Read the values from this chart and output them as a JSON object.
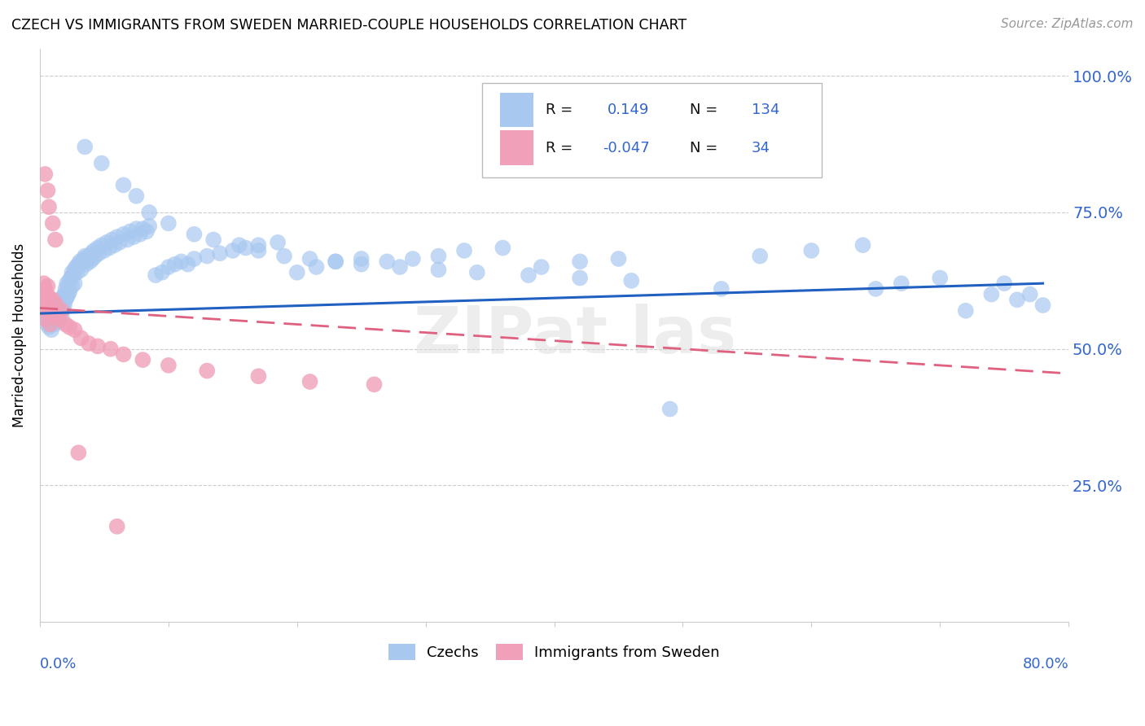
{
  "title": "CZECH VS IMMIGRANTS FROM SWEDEN MARRIED-COUPLE HOUSEHOLDS CORRELATION CHART",
  "source": "Source: ZipAtlas.com",
  "ylabel": "Married-couple Households",
  "y_tick_vals": [
    1.0,
    0.75,
    0.5,
    0.25
  ],
  "y_tick_labels": [
    "100.0%",
    "75.0%",
    "50.0%",
    "25.0%"
  ],
  "x_min": 0.0,
  "x_max": 0.8,
  "y_min": 0.0,
  "y_max": 1.05,
  "blue_color": "#A8C8F0",
  "pink_color": "#F0A0B8",
  "blue_line_color": "#2060C0",
  "pink_line_color": "#E06080",
  "legend_R1": "0.149",
  "legend_N1": "134",
  "legend_R2": "-0.047",
  "legend_N2": "34",
  "czech_x": [
    0.004,
    0.005,
    0.006,
    0.007,
    0.008,
    0.009,
    0.01,
    0.01,
    0.01,
    0.011,
    0.011,
    0.012,
    0.013,
    0.013,
    0.014,
    0.015,
    0.015,
    0.015,
    0.016,
    0.016,
    0.017,
    0.017,
    0.018,
    0.018,
    0.019,
    0.019,
    0.02,
    0.02,
    0.021,
    0.021,
    0.022,
    0.022,
    0.023,
    0.023,
    0.024,
    0.025,
    0.025,
    0.026,
    0.027,
    0.027,
    0.028,
    0.029,
    0.03,
    0.031,
    0.032,
    0.033,
    0.034,
    0.035,
    0.036,
    0.037,
    0.038,
    0.039,
    0.04,
    0.041,
    0.042,
    0.043,
    0.045,
    0.046,
    0.048,
    0.05,
    0.052,
    0.054,
    0.056,
    0.058,
    0.06,
    0.062,
    0.065,
    0.068,
    0.07,
    0.073,
    0.075,
    0.078,
    0.08,
    0.083,
    0.085,
    0.09,
    0.095,
    0.1,
    0.105,
    0.11,
    0.115,
    0.12,
    0.13,
    0.14,
    0.15,
    0.16,
    0.17,
    0.185,
    0.2,
    0.215,
    0.23,
    0.25,
    0.27,
    0.29,
    0.31,
    0.33,
    0.36,
    0.39,
    0.42,
    0.45,
    0.49,
    0.53,
    0.56,
    0.6,
    0.64,
    0.65,
    0.67,
    0.7,
    0.72,
    0.74,
    0.75,
    0.76,
    0.77,
    0.78,
    0.035,
    0.048,
    0.065,
    0.075,
    0.085,
    0.1,
    0.12,
    0.135,
    0.155,
    0.17,
    0.19,
    0.21,
    0.23,
    0.25,
    0.28,
    0.31,
    0.34,
    0.38,
    0.42,
    0.46
  ],
  "czech_y": [
    0.565,
    0.555,
    0.545,
    0.54,
    0.56,
    0.535,
    0.57,
    0.58,
    0.55,
    0.56,
    0.545,
    0.555,
    0.575,
    0.56,
    0.57,
    0.585,
    0.565,
    0.55,
    0.59,
    0.575,
    0.58,
    0.56,
    0.595,
    0.575,
    0.6,
    0.58,
    0.61,
    0.59,
    0.62,
    0.595,
    0.615,
    0.6,
    0.625,
    0.605,
    0.63,
    0.64,
    0.615,
    0.635,
    0.645,
    0.62,
    0.65,
    0.64,
    0.655,
    0.66,
    0.645,
    0.66,
    0.665,
    0.67,
    0.655,
    0.665,
    0.67,
    0.66,
    0.675,
    0.665,
    0.68,
    0.67,
    0.685,
    0.675,
    0.69,
    0.68,
    0.695,
    0.685,
    0.7,
    0.69,
    0.705,
    0.695,
    0.71,
    0.7,
    0.715,
    0.705,
    0.72,
    0.71,
    0.72,
    0.715,
    0.725,
    0.635,
    0.64,
    0.65,
    0.655,
    0.66,
    0.655,
    0.665,
    0.67,
    0.675,
    0.68,
    0.685,
    0.69,
    0.695,
    0.64,
    0.65,
    0.66,
    0.665,
    0.66,
    0.665,
    0.67,
    0.68,
    0.685,
    0.65,
    0.66,
    0.665,
    0.39,
    0.61,
    0.67,
    0.68,
    0.69,
    0.61,
    0.62,
    0.63,
    0.57,
    0.6,
    0.62,
    0.59,
    0.6,
    0.58,
    0.87,
    0.84,
    0.8,
    0.78,
    0.75,
    0.73,
    0.71,
    0.7,
    0.69,
    0.68,
    0.67,
    0.665,
    0.66,
    0.655,
    0.65,
    0.645,
    0.64,
    0.635,
    0.63,
    0.625
  ],
  "sweden_x": [
    0.003,
    0.003,
    0.004,
    0.004,
    0.004,
    0.005,
    0.005,
    0.006,
    0.006,
    0.007,
    0.007,
    0.008,
    0.008,
    0.009,
    0.01,
    0.01,
    0.012,
    0.013,
    0.015,
    0.017,
    0.02,
    0.023,
    0.027,
    0.032,
    0.038,
    0.045,
    0.055,
    0.065,
    0.08,
    0.1,
    0.13,
    0.17,
    0.21,
    0.26
  ],
  "sweden_y": [
    0.62,
    0.59,
    0.61,
    0.58,
    0.555,
    0.6,
    0.57,
    0.615,
    0.585,
    0.595,
    0.57,
    0.545,
    0.59,
    0.575,
    0.565,
    0.59,
    0.56,
    0.58,
    0.555,
    0.57,
    0.545,
    0.54,
    0.535,
    0.52,
    0.51,
    0.505,
    0.5,
    0.49,
    0.48,
    0.47,
    0.46,
    0.45,
    0.44,
    0.435
  ],
  "sweden_outlier_x": [
    0.004,
    0.006,
    0.007,
    0.01,
    0.012,
    0.03,
    0.06
  ],
  "sweden_outlier_y": [
    0.82,
    0.79,
    0.76,
    0.73,
    0.7,
    0.31,
    0.175
  ]
}
